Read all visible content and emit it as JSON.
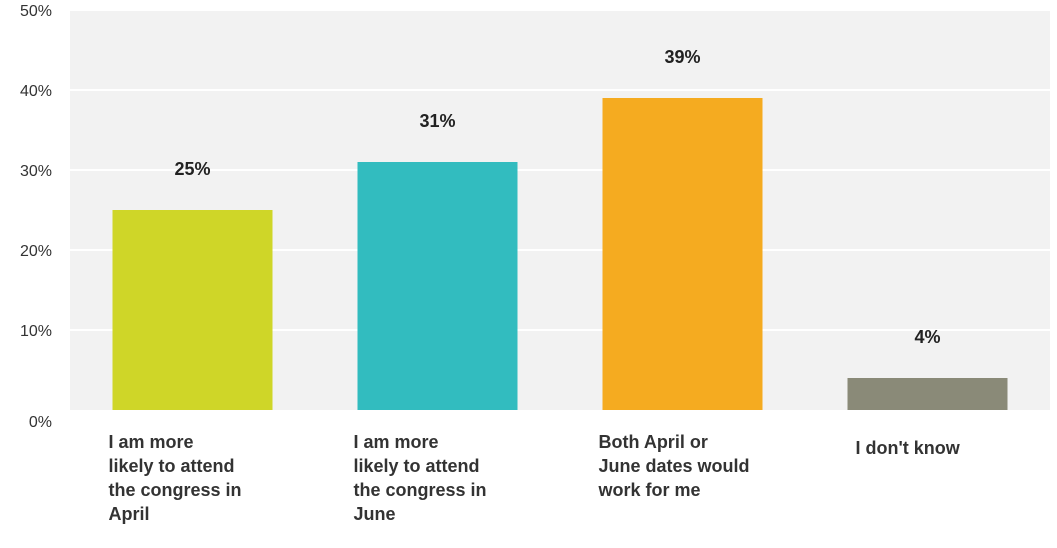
{
  "chart_data": {
    "type": "bar",
    "categories": [
      "I am more\nlikely to attend\nthe congress in\nApril",
      "I am more\nlikely to attend\nthe congress in\nJune",
      "Both April or\nJune dates would\nwork for me",
      "I don't know"
    ],
    "values": [
      25,
      31,
      39,
      4
    ],
    "data_labels": [
      "25%",
      "31%",
      "39%",
      "4%"
    ],
    "ylim": [
      0,
      50
    ],
    "yticks": [
      0,
      10,
      20,
      30,
      40,
      50
    ],
    "ytick_labels": [
      "0%",
      "10%",
      "20%",
      "30%",
      "40%",
      "50%"
    ],
    "grid": true,
    "colors": [
      "#cfd628",
      "#32bcbf",
      "#f5ab20",
      "#8a8a78"
    ],
    "background": "#f2f2f2",
    "grid_color": "#ffffff"
  }
}
